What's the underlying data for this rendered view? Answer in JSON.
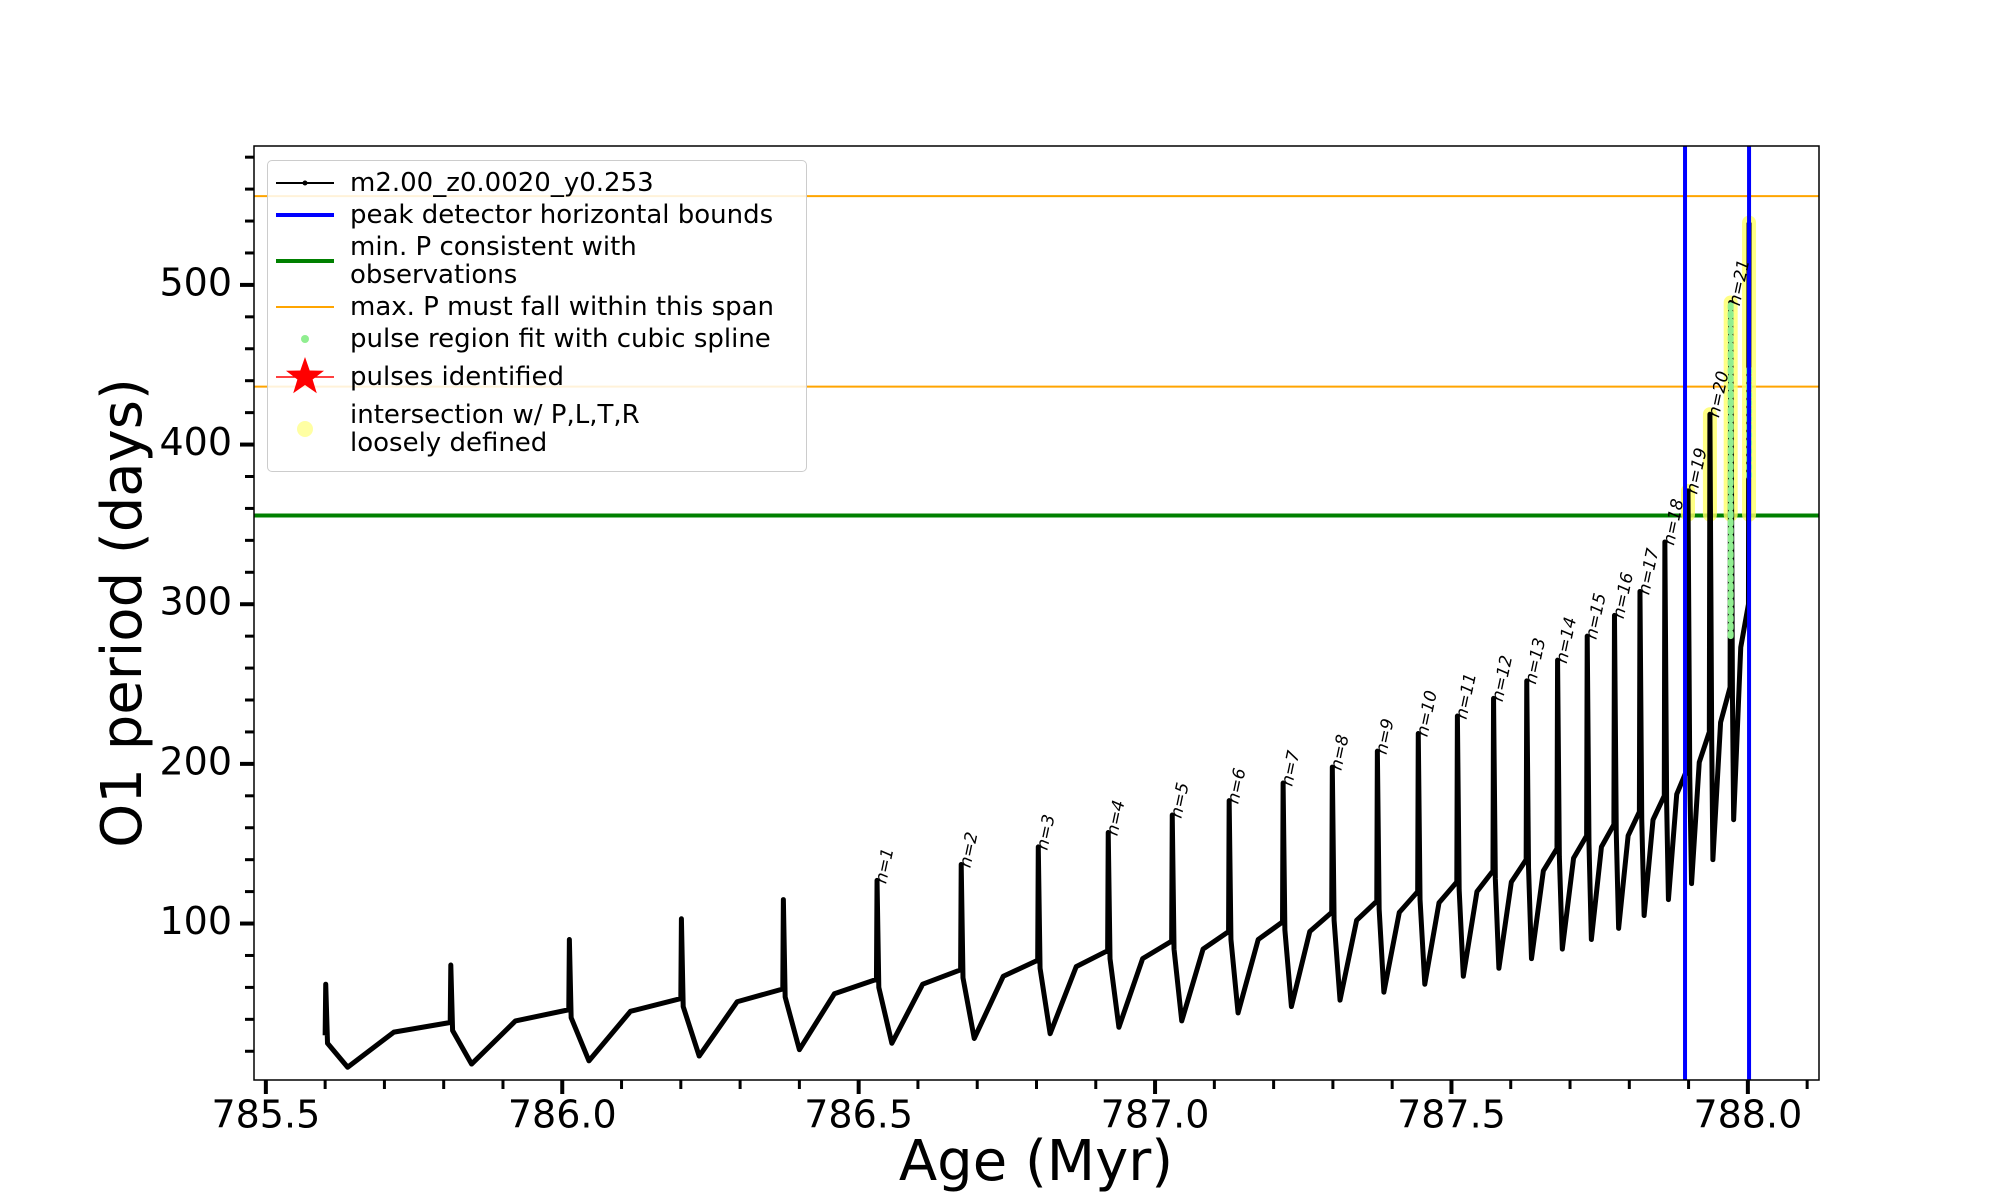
{
  "chart_data": {
    "type": "line",
    "x_label": "Age (Myr)",
    "y_label": "O1 period (days)",
    "xlim": [
      785.48,
      788.12
    ],
    "ylim": [
      2,
      587
    ],
    "xticks": [
      785.5,
      {
        "value": 786,
        "label": "786.0"
      },
      786.5,
      {
        "value": 787,
        "label": "787.0"
      },
      787.5,
      {
        "value": 788,
        "label": "788.0"
      }
    ],
    "xminorticks": [
      785.6,
      785.7,
      785.8,
      785.9,
      786.1,
      786.2,
      786.3,
      786.4,
      786.6,
      786.7,
      786.8,
      786.9,
      787.1,
      787.2,
      787.3,
      787.4,
      787.6,
      787.7,
      787.8,
      787.9,
      788.1
    ],
    "yticks": [
      100,
      200,
      300,
      400,
      500
    ],
    "yminorticks": [
      20,
      40,
      60,
      80,
      120,
      140,
      160,
      180,
      220,
      240,
      260,
      280,
      320,
      340,
      360,
      380,
      420,
      440,
      460,
      480,
      520,
      540,
      560,
      580
    ],
    "legend": "upper left",
    "series": [
      {
        "name": "m2.00_z0.0020_y0.253",
        "color": "#000000",
        "x": [
          785.6,
          785.601,
          785.604,
          785.638,
          785.716,
          785.811,
          785.812,
          785.815,
          785.847,
          785.921,
          786.011,
          786.012,
          786.015,
          786.045,
          786.115,
          786.2,
          786.201,
          786.204,
          786.231,
          786.295,
          786.372,
          786.373,
          786.376,
          786.4,
          786.459,
          786.53,
          786.531,
          786.534,
          786.556,
          786.608,
          786.672,
          786.673,
          786.676,
          786.695,
          786.744,
          786.802,
          786.803,
          786.806,
          786.823,
          786.867,
          786.92,
          786.921,
          786.924,
          786.939,
          786.979,
          787.028,
          787.029,
          787.032,
          787.045,
          787.081,
          787.124,
          787.125,
          787.128,
          787.14,
          787.174,
          787.215,
          787.216,
          787.219,
          787.23,
          787.261,
          787.298,
          787.299,
          787.302,
          787.312,
          787.34,
          787.374,
          787.375,
          787.378,
          787.386,
          787.412,
          787.443,
          787.444,
          787.447,
          787.455,
          787.479,
          787.509,
          787.51,
          787.513,
          787.52,
          787.543,
          787.57,
          787.571,
          787.574,
          787.58,
          787.601,
          787.626,
          787.627,
          787.63,
          787.635,
          787.655,
          787.678,
          787.679,
          787.682,
          787.687,
          787.706,
          787.728,
          787.729,
          787.732,
          787.736,
          787.753,
          787.774,
          787.775,
          787.778,
          787.782,
          787.798,
          787.817,
          787.818,
          787.821,
          787.825,
          787.84,
          787.859,
          787.86,
          787.863,
          787.866,
          787.88,
          787.898,
          787.899,
          787.902,
          787.905,
          787.918,
          787.935,
          787.936,
          787.939,
          787.941,
          787.954,
          787.97,
          787.971,
          787.974,
          787.976,
          787.988,
          788.001,
          788.002
        ],
        "values": [
          30,
          62,
          25,
          10,
          32,
          38,
          74,
          33,
          12,
          39,
          46,
          90,
          41,
          14,
          45,
          53,
          103,
          48,
          17,
          51,
          59,
          115,
          54,
          21,
          56,
          65,
          127,
          60,
          25,
          62,
          71,
          137,
          66,
          28,
          67,
          77,
          148,
          72,
          31,
          73,
          83,
          157,
          78,
          35,
          78,
          89,
          168,
          84,
          39,
          84,
          95,
          177,
          90,
          44,
          90,
          101,
          188,
          96,
          48,
          95,
          107,
          198,
          102,
          52,
          102,
          114,
          208,
          109,
          57,
          107,
          120,
          219,
          115,
          62,
          113,
          126,
          230,
          121,
          67,
          120,
          133,
          241,
          128,
          72,
          126,
          140,
          252,
          135,
          78,
          133,
          147,
          265,
          142,
          84,
          141,
          155,
          280,
          150,
          90,
          148,
          162,
          293,
          157,
          97,
          155,
          170,
          308,
          165,
          105,
          165,
          180,
          339,
          175,
          115,
          181,
          197,
          371,
          192,
          125,
          201,
          220,
          419,
          215,
          140,
          226,
          248,
          489,
          243,
          165,
          273,
          300,
          539
        ]
      }
    ],
    "vlines": {
      "name": "peak detector horizontal bounds",
      "color": "#0000ff",
      "values": [
        787.894,
        788.002
      ]
    },
    "hlines": [
      {
        "name": "min. P consistent with observations",
        "color": "#008000",
        "values": [
          355.6
        ]
      },
      {
        "name": "max. P must fall within this span",
        "color": "#ffa500",
        "values": [
          436.3,
          555.6
        ]
      }
    ],
    "spline": {
      "name": "pulse region fit with cubic spline",
      "color": "#90ee90",
      "segments": [
        {
          "x": 787.971,
          "ymin": 280,
          "ymax": 489
        },
        {
          "x": 788.002,
          "ymin": 380,
          "ymax": 450
        }
      ]
    },
    "pulses": {
      "name": "pulses identified",
      "color": "#ff0000"
    },
    "intersection": {
      "name": "intersection w/ P,L,T,R\nloosely defined",
      "color": "#ffff66",
      "segments": [
        {
          "x": 787.899,
          "ymin": 356,
          "ymax": 371
        },
        {
          "x": 787.936,
          "ymin": 356,
          "ymax": 419
        },
        {
          "x": 787.971,
          "ymin": 356,
          "ymax": 489
        },
        {
          "x": 788.002,
          "ymin": 356,
          "ymax": 539
        }
      ]
    },
    "annotations": [
      {
        "text": "n=1",
        "x": 786.531,
        "y": 127
      },
      {
        "text": "n=2",
        "x": 786.673,
        "y": 137
      },
      {
        "text": "n=3",
        "x": 786.803,
        "y": 148
      },
      {
        "text": "n=4",
        "x": 786.921,
        "y": 157
      },
      {
        "text": "n=5",
        "x": 787.029,
        "y": 168
      },
      {
        "text": "n=6",
        "x": 787.125,
        "y": 177
      },
      {
        "text": "n=7",
        "x": 787.216,
        "y": 188
      },
      {
        "text": "n=8",
        "x": 787.299,
        "y": 198
      },
      {
        "text": "n=9",
        "x": 787.375,
        "y": 208
      },
      {
        "text": "n=10",
        "x": 787.444,
        "y": 219
      },
      {
        "text": "n=11",
        "x": 787.51,
        "y": 230
      },
      {
        "text": "n=12",
        "x": 787.571,
        "y": 241
      },
      {
        "text": "n=13",
        "x": 787.627,
        "y": 252
      },
      {
        "text": "n=14",
        "x": 787.679,
        "y": 265
      },
      {
        "text": "n=15",
        "x": 787.729,
        "y": 280
      },
      {
        "text": "n=16",
        "x": 787.775,
        "y": 293
      },
      {
        "text": "n=17",
        "x": 787.818,
        "y": 308
      },
      {
        "text": "n=18",
        "x": 787.86,
        "y": 339
      },
      {
        "text": "n=19",
        "x": 787.899,
        "y": 371
      },
      {
        "text": "n=20",
        "x": 787.936,
        "y": 419
      },
      {
        "text": "n=21",
        "x": 787.971,
        "y": 489
      }
    ]
  }
}
